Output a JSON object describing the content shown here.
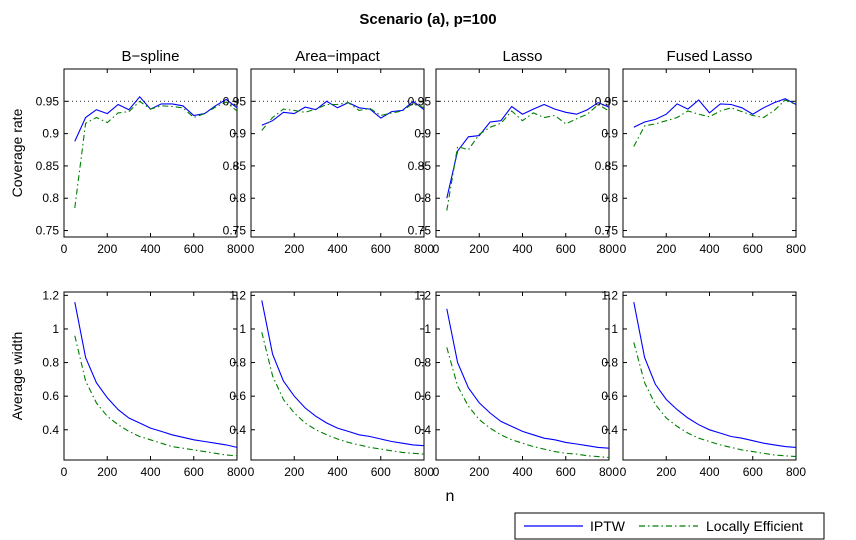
{
  "figure": {
    "title": "Scenario (a), p=100",
    "xlabel": "n",
    "legend": [
      "IPTW",
      "Locally Efficient"
    ]
  },
  "colors": {
    "iptw": "#0000ff",
    "locally_efficient": "#007f00",
    "reference_line": "#333333",
    "axes": "#000000"
  },
  "chart_data": {
    "type": "line",
    "layout": "2x4 grid of panels",
    "legend_placement": "bottom-right",
    "grid": false,
    "x": [
      50,
      100,
      150,
      200,
      250,
      300,
      350,
      400,
      450,
      500,
      550,
      600,
      650,
      700,
      750,
      800
    ],
    "xlim": [
      0,
      800
    ],
    "xticks": [
      0,
      200,
      400,
      600,
      800
    ],
    "panel_titles": [
      "B−spline",
      "Area−impact",
      "Lasso",
      "Fused Lasso"
    ],
    "rows": [
      {
        "ylabel": "Coverage rate",
        "ylim": [
          0.74,
          1.0
        ],
        "yticks": [
          0.75,
          0.8,
          0.85,
          0.9,
          0.95
        ],
        "ytick_labels": [
          "0.75",
          "0.8",
          "0.85",
          "0.9",
          "0.95"
        ],
        "reference_line": 0.95,
        "panels": [
          {
            "series": [
              {
                "name": "IPTW",
                "values": [
                  0.888,
                  0.925,
                  0.937,
                  0.931,
                  0.945,
                  0.937,
                  0.957,
                  0.938,
                  0.946,
                  0.946,
                  0.943,
                  0.928,
                  0.931,
                  0.943,
                  0.953,
                  0.94
                ]
              },
              {
                "name": "Locally Efficient",
                "values": [
                  0.785,
                  0.916,
                  0.925,
                  0.917,
                  0.932,
                  0.934,
                  0.95,
                  0.938,
                  0.943,
                  0.942,
                  0.94,
                  0.925,
                  0.931,
                  0.941,
                  0.949,
                  0.935
                ]
              }
            ]
          },
          {
            "series": [
              {
                "name": "IPTW",
                "values": [
                  0.913,
                  0.92,
                  0.933,
                  0.931,
                  0.941,
                  0.937,
                  0.95,
                  0.94,
                  0.948,
                  0.94,
                  0.938,
                  0.924,
                  0.934,
                  0.936,
                  0.95,
                  0.937
                ]
              },
              {
                "name": "Locally Efficient",
                "values": [
                  0.905,
                  0.925,
                  0.938,
                  0.936,
                  0.933,
                  0.938,
                  0.945,
                  0.945,
                  0.948,
                  0.936,
                  0.939,
                  0.928,
                  0.932,
                  0.935,
                  0.947,
                  0.94
                ]
              }
            ]
          },
          {
            "series": [
              {
                "name": "IPTW",
                "values": [
                  0.8,
                  0.873,
                  0.895,
                  0.897,
                  0.918,
                  0.92,
                  0.942,
                  0.93,
                  0.938,
                  0.945,
                  0.938,
                  0.933,
                  0.93,
                  0.937,
                  0.948,
                  0.941
                ]
              },
              {
                "name": "Locally Efficient",
                "values": [
                  0.781,
                  0.88,
                  0.875,
                  0.899,
                  0.91,
                  0.916,
                  0.935,
                  0.92,
                  0.932,
                  0.925,
                  0.928,
                  0.915,
                  0.923,
                  0.93,
                  0.945,
                  0.935
                ]
              }
            ]
          },
          {
            "series": [
              {
                "name": "IPTW",
                "values": [
                  0.91,
                  0.918,
                  0.922,
                  0.93,
                  0.946,
                  0.938,
                  0.952,
                  0.932,
                  0.946,
                  0.945,
                  0.94,
                  0.93,
                  0.94,
                  0.948,
                  0.954,
                  0.945
                ]
              },
              {
                "name": "Locally Efficient",
                "values": [
                  0.88,
                  0.912,
                  0.915,
                  0.92,
                  0.925,
                  0.935,
                  0.93,
                  0.926,
                  0.935,
                  0.94,
                  0.934,
                  0.928,
                  0.925,
                  0.936,
                  0.952,
                  0.945
                ]
              }
            ]
          }
        ]
      },
      {
        "ylabel": "Average width",
        "ylim": [
          0.22,
          1.22
        ],
        "yticks": [
          0.4,
          0.6,
          0.8,
          1.0,
          1.2
        ],
        "ytick_labels": [
          "0.4",
          "0.6",
          "0.8",
          "1",
          "1.2"
        ],
        "reference_line": null,
        "panels": [
          {
            "series": [
              {
                "name": "IPTW",
                "values": [
                  1.16,
                  0.83,
                  0.68,
                  0.59,
                  0.52,
                  0.47,
                  0.44,
                  0.41,
                  0.39,
                  0.37,
                  0.355,
                  0.34,
                  0.33,
                  0.32,
                  0.31,
                  0.295
                ]
              },
              {
                "name": "Locally Efficient",
                "values": [
                  0.96,
                  0.69,
                  0.56,
                  0.48,
                  0.43,
                  0.39,
                  0.36,
                  0.34,
                  0.32,
                  0.3,
                  0.29,
                  0.28,
                  0.27,
                  0.26,
                  0.25,
                  0.245
                ]
              }
            ]
          },
          {
            "series": [
              {
                "name": "IPTW",
                "values": [
                  1.17,
                  0.85,
                  0.69,
                  0.6,
                  0.53,
                  0.48,
                  0.44,
                  0.41,
                  0.39,
                  0.37,
                  0.36,
                  0.345,
                  0.33,
                  0.32,
                  0.31,
                  0.305
                ]
              },
              {
                "name": "Locally Efficient",
                "values": [
                  0.98,
                  0.72,
                  0.58,
                  0.5,
                  0.44,
                  0.4,
                  0.37,
                  0.345,
                  0.325,
                  0.31,
                  0.295,
                  0.285,
                  0.275,
                  0.265,
                  0.26,
                  0.255
                ]
              }
            ]
          },
          {
            "series": [
              {
                "name": "IPTW",
                "values": [
                  1.12,
                  0.8,
                  0.65,
                  0.56,
                  0.5,
                  0.45,
                  0.42,
                  0.39,
                  0.37,
                  0.35,
                  0.34,
                  0.325,
                  0.315,
                  0.305,
                  0.295,
                  0.29
                ]
              },
              {
                "name": "Locally Efficient",
                "values": [
                  0.89,
                  0.66,
                  0.54,
                  0.46,
                  0.41,
                  0.37,
                  0.34,
                  0.32,
                  0.3,
                  0.285,
                  0.27,
                  0.26,
                  0.255,
                  0.245,
                  0.24,
                  0.235
                ]
              }
            ]
          },
          {
            "series": [
              {
                "name": "IPTW",
                "values": [
                  1.16,
                  0.83,
                  0.67,
                  0.58,
                  0.52,
                  0.47,
                  0.43,
                  0.4,
                  0.38,
                  0.36,
                  0.35,
                  0.335,
                  0.32,
                  0.31,
                  0.3,
                  0.295
                ]
              },
              {
                "name": "Locally Efficient",
                "values": [
                  0.92,
                  0.68,
                  0.55,
                  0.47,
                  0.42,
                  0.38,
                  0.35,
                  0.33,
                  0.31,
                  0.295,
                  0.28,
                  0.27,
                  0.26,
                  0.25,
                  0.245,
                  0.24
                ]
              }
            ]
          }
        ]
      }
    ]
  }
}
